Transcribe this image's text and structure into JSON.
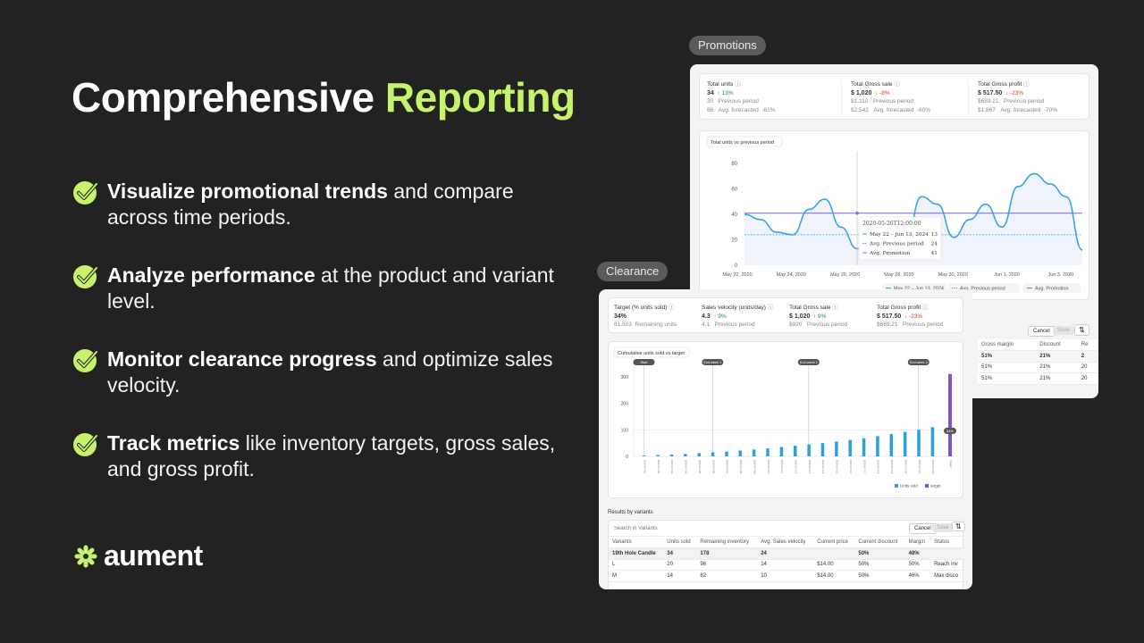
{
  "headline": {
    "part1": "Comprehensive",
    "part2": "Reporting"
  },
  "bullets": [
    {
      "bold": "Visualize promotional trends",
      "rest": " and compare across time periods."
    },
    {
      "bold": "Analyze performance",
      "rest": " at the product and variant level."
    },
    {
      "bold": "Monitor clearance progress",
      "rest": " and optimize sales velocity."
    },
    {
      "bold": "Track metrics",
      "rest": " like inventory targets, gross sales, and gross profit."
    }
  ],
  "logo": {
    "wordmark": "aument"
  },
  "colors": {
    "accent": "#c7f26b",
    "background": "#222222",
    "line": "#35a7e0",
    "promo": "#8b6fe0",
    "bar": "#2a9fdc",
    "target_bar": "#7b55d6"
  },
  "promotions": {
    "tag": "Promotions",
    "metrics": [
      {
        "label": "Total units",
        "value": "34",
        "change": "13%",
        "dir": "up",
        "prev_value": "30",
        "prev_label": "Previous period",
        "fc_value": "88",
        "fc_label": "Avg. forecasted",
        "fc_pct": "-61%"
      },
      {
        "label": "Total Gross sale",
        "value": "$ 1,020",
        "change": "-8%",
        "dir": "down",
        "prev_value": "$1,110",
        "prev_label": "Previous period",
        "fc_value": "$2,542",
        "fc_label": "Avg. forecasted",
        "fc_pct": "-60%"
      },
      {
        "label": "Total Gross profit",
        "value": "$ 517.50",
        "change": "-23%",
        "dir": "down",
        "prev_value": "$689.21",
        "prev_label": "Previous period",
        "fc_value": "$1,867",
        "fc_label": "Avg. forecasted",
        "fc_pct": "-70%"
      }
    ],
    "chart_title": "Total units vs previous period",
    "table_actions": {
      "cancel": "Cancel",
      "save": "Save"
    },
    "table_headers": [
      "Gross margin",
      "Discount",
      "Re"
    ],
    "table_rows": [
      [
        "51%",
        "21%",
        "2"
      ],
      [
        "51%",
        "21%",
        "20"
      ],
      [
        "51%",
        "21%",
        "20"
      ]
    ]
  },
  "clearance": {
    "tag": "Clearance",
    "metrics": [
      {
        "label": "Target (% units sold)",
        "value": "34%",
        "change": "",
        "dir": "",
        "prev_value": "81,503",
        "prev_label": "Remaining units"
      },
      {
        "label": "Sales velocity (units/day)",
        "value": "4.3",
        "change": "9%",
        "dir": "up",
        "prev_value": "4.1",
        "prev_label": "Previous period"
      },
      {
        "label": "Total Gross sale",
        "value": "$ 1,020",
        "change": "9%",
        "dir": "up",
        "prev_value": "$920",
        "prev_label": "Previous period"
      },
      {
        "label": "Total Gross profit",
        "value": "$ 517.50",
        "change": "-23%",
        "dir": "down",
        "prev_value": "$689.21",
        "prev_label": "Previous period"
      }
    ],
    "chart_title": "Cumulative units sold vs target",
    "results_title": "Results by variants",
    "search_placeholder": "Search in Variants",
    "table_actions": {
      "cancel": "Cancel",
      "save": "Save"
    },
    "table_headers": [
      "Variants",
      "Units sold",
      "Remaining inventory",
      "Avg. Sales velocity",
      "Current price",
      "Current discount",
      "Margin",
      "Status"
    ],
    "table_rows": [
      [
        "19th Hole Candle",
        "34",
        "178",
        "24",
        "",
        "50%",
        "48%",
        ""
      ],
      [
        "L",
        "20",
        "96",
        "14",
        "$14.00",
        "50%",
        "50%",
        "Reach inv"
      ],
      [
        "M",
        "14",
        "82",
        "10",
        "$14.00",
        "50%",
        "46%",
        "Max disco"
      ]
    ]
  },
  "chart_data": [
    {
      "type": "line",
      "title": "Total units vs previous period",
      "x_ticks": [
        "May 22, 2020",
        "May 24, 2020",
        "May 26, 2020",
        "May 28, 2020",
        "May 30, 2020",
        "Jun 1, 2020",
        "Jun 3, 2020"
      ],
      "y_ticks": [
        0,
        20,
        40,
        60,
        80
      ],
      "ylim": [
        0,
        90
      ],
      "series": [
        {
          "name": "May 22 – Jun 13, 2024",
          "values": [
            40,
            36,
            26,
            24,
            44,
            52,
            30,
            13,
            20,
            10,
            18,
            54,
            48,
            22,
            36,
            48,
            30,
            62,
            72,
            64,
            54,
            12
          ]
        },
        {
          "name": "Avg. Previous period",
          "values": [
            24,
            24,
            24,
            24,
            24,
            24,
            24,
            24,
            24,
            24,
            24,
            24,
            24,
            24,
            24,
            24,
            24,
            24,
            24,
            24,
            24,
            24
          ]
        },
        {
          "name": "Avg. Promotion",
          "values": [
            41,
            41,
            41,
            41,
            41,
            41,
            41,
            41,
            41,
            41,
            41,
            41,
            41,
            41,
            41,
            41,
            41,
            41,
            41,
            41,
            41,
            41
          ]
        }
      ],
      "tooltip": {
        "date": "2020-05-26T12:00:00",
        "rows": [
          {
            "label": "May 22 – Jun 13, 2024",
            "value": "13"
          },
          {
            "label": "Avg. Previous period",
            "value": "24"
          },
          {
            "label": "Avg. Promotion",
            "value": "41"
          }
        ]
      },
      "legend": [
        "May 22 – Jun 13, 2024",
        "Avg. Previous period",
        "Avg. Promotion"
      ]
    },
    {
      "type": "bar",
      "title": "Cumulative units sold vs target",
      "y_ticks": [
        0,
        100,
        200,
        300
      ],
      "ylim": [
        0,
        330
      ],
      "values": [
        3,
        5,
        7,
        9,
        12,
        15,
        18,
        22,
        26,
        30,
        35,
        40,
        45,
        50,
        56,
        62,
        68,
        76,
        84,
        92,
        100,
        110
      ],
      "target": 310,
      "target_label": "34%",
      "week_markers": [
        {
          "label": "Start",
          "index": 0
        },
        {
          "label": "End week 1",
          "index": 5
        },
        {
          "label": "End week 2",
          "index": 12
        },
        {
          "label": "End week 3",
          "index": 20
        }
      ],
      "legend": [
        "Units sold",
        "target"
      ]
    }
  ]
}
